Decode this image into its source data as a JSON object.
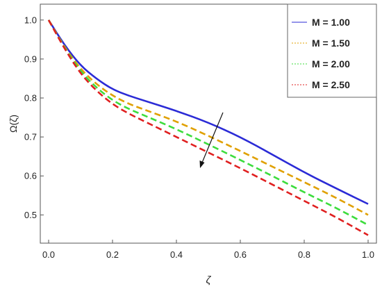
{
  "chart_data": {
    "type": "line",
    "xlabel": "ζ",
    "ylabel": "Ω(ζ)",
    "xlim": [
      0.0,
      1.0
    ],
    "ylim": [
      0.44,
      1.03
    ],
    "x_ticks": [
      "0.0",
      "0.2",
      "0.4",
      "0.6",
      "0.8",
      "1.0"
    ],
    "y_ticks": [
      "0.5",
      "0.6",
      "0.7",
      "0.8",
      "0.9",
      "1.0"
    ],
    "legend_position": "top-right",
    "annotation": "arrow indicating decreasing Ω(ζ) with increasing M",
    "x": [
      0.0,
      0.05,
      0.1,
      0.15,
      0.2,
      0.25,
      0.3,
      0.4,
      0.5,
      0.6,
      0.7,
      0.8,
      0.9,
      1.0
    ],
    "series": [
      {
        "name": "M = 1.00",
        "color": "#2b2bd6",
        "dash": "solid",
        "values": [
          1.0,
          0.935,
          0.883,
          0.849,
          0.822,
          0.806,
          0.793,
          0.767,
          0.737,
          0.7,
          0.655,
          0.609,
          0.568,
          0.528
        ]
      },
      {
        "name": "M = 1.50",
        "color": "#e0a000",
        "dash": "dashed",
        "values": [
          1.0,
          0.93,
          0.874,
          0.835,
          0.806,
          0.785,
          0.77,
          0.74,
          0.703,
          0.664,
          0.624,
          0.584,
          0.544,
          0.5
        ]
      },
      {
        "name": "M = 2.00",
        "color": "#3ddc3d",
        "dash": "dashed",
        "values": [
          1.0,
          0.928,
          0.868,
          0.826,
          0.794,
          0.772,
          0.755,
          0.72,
          0.681,
          0.641,
          0.6,
          0.558,
          0.518,
          0.474
        ]
      },
      {
        "name": "M = 2.50",
        "color": "#e02020",
        "dash": "dashed",
        "values": [
          1.0,
          0.926,
          0.862,
          0.818,
          0.784,
          0.76,
          0.74,
          0.7,
          0.66,
          0.62,
          0.578,
          0.536,
          0.494,
          0.448
        ]
      }
    ]
  }
}
